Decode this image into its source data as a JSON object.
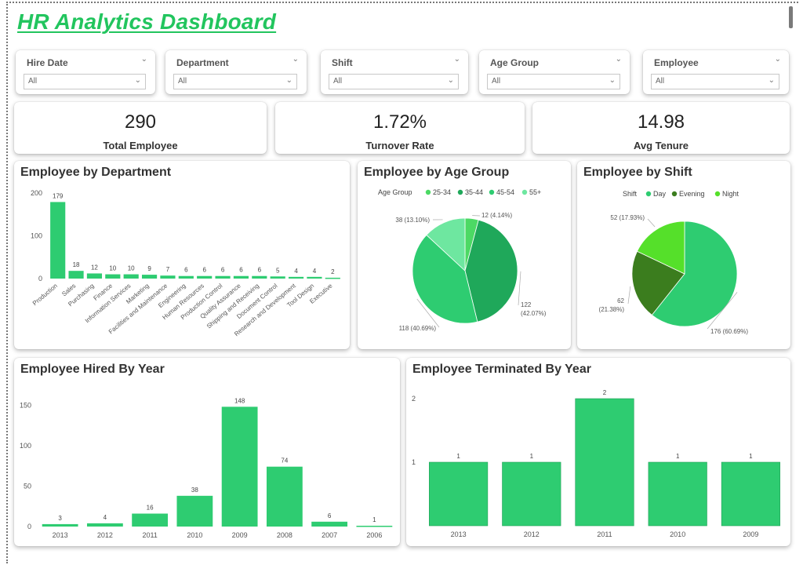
{
  "dashboard": {
    "title": "HR Analytics Dashboard"
  },
  "slicers": [
    {
      "label": "Hire Date",
      "value": "All"
    },
    {
      "label": "Department",
      "value": "All"
    },
    {
      "label": "Shift",
      "value": "All"
    },
    {
      "label": "Age Group",
      "value": "All"
    },
    {
      "label": "Employee",
      "value": "All"
    }
  ],
  "kpis": [
    {
      "value": "290",
      "label": "Total Employee"
    },
    {
      "value": "1.72%",
      "label": "Turnover Rate"
    },
    {
      "value": "14.98",
      "label": "Avg Tenure"
    }
  ],
  "colors": {
    "bar": "#2ecc71",
    "age_25_34": "#4cd964",
    "age_35_44": "#1fa85a",
    "age_45_54": "#2ecc71",
    "age_55_plus": "#6ee7a0",
    "shift_day": "#2ecc71",
    "shift_evening": "#3b7d1e",
    "shift_night": "#55e02a"
  },
  "chart_titles": {
    "department": "Employee by Department",
    "age_group": "Employee by Age Group",
    "shift": "Employee by Shift",
    "hired": "Employee Hired By Year",
    "terminated": "Employee Terminated By Year"
  },
  "chart_data": [
    {
      "type": "bar",
      "title": "Employee by Department",
      "categories": [
        "Production",
        "Sales",
        "Purchasing",
        "Finance",
        "Information Services",
        "Marketing",
        "Facilities and Maintenance",
        "Engineering",
        "Human Resources",
        "Production Control",
        "Quality Assurance",
        "Shipping and Receiving",
        "Document Control",
        "Research and Development",
        "Tool Design",
        "Executive"
      ],
      "values": [
        179,
        18,
        12,
        10,
        10,
        9,
        7,
        6,
        6,
        6,
        6,
        6,
        5,
        4,
        4,
        2
      ],
      "y_ticks": [
        0,
        100,
        200
      ],
      "ylim": [
        0,
        200
      ]
    },
    {
      "type": "pie",
      "title": "Employee by Age Group",
      "legend_title": "Age Group",
      "categories": [
        "25-34",
        "35-44",
        "45-54",
        "55+"
      ],
      "values": [
        12,
        122,
        118,
        38
      ],
      "labels": [
        "12 (4.14%)",
        "122 (42.07%)",
        "118 (40.69%)",
        "38 (13.10%)"
      ]
    },
    {
      "type": "pie",
      "title": "Employee by Shift",
      "legend_title": "Shift",
      "categories": [
        "Day",
        "Evening",
        "Night"
      ],
      "values": [
        176,
        62,
        52
      ],
      "labels": [
        "176 (60.69%)",
        "62 (21.38%)",
        "52 (17.93%)"
      ]
    },
    {
      "type": "bar",
      "title": "Employee Hired By Year",
      "categories": [
        "2013",
        "2012",
        "2011",
        "2010",
        "2009",
        "2008",
        "2007",
        "2006"
      ],
      "values": [
        3,
        4,
        16,
        38,
        148,
        74,
        6,
        1
      ],
      "y_ticks": [
        0,
        50,
        100,
        150
      ],
      "ylim": [
        0,
        160
      ]
    },
    {
      "type": "bar",
      "title": "Employee Terminated By Year",
      "categories": [
        "2013",
        "2012",
        "2011",
        "2010",
        "2009"
      ],
      "values": [
        1,
        1,
        2,
        1,
        1
      ],
      "y_ticks": [
        1,
        2
      ],
      "ylim": [
        0,
        2
      ]
    }
  ]
}
